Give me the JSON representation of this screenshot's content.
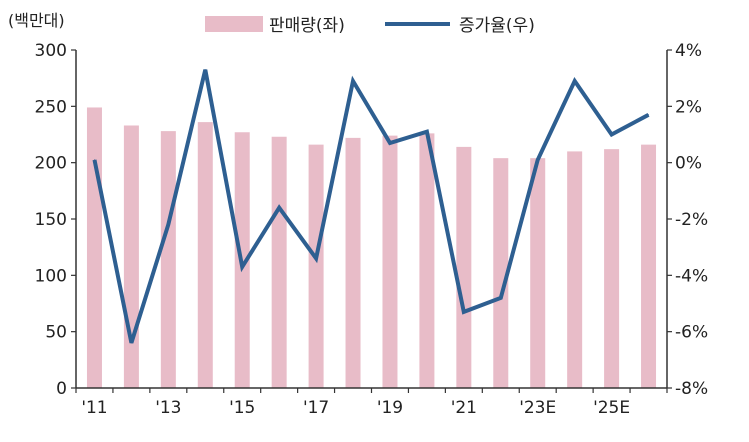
{
  "chart_data": {
    "type": "bar+line",
    "left_axis_unit": "(백만대)",
    "legend": {
      "bar_label": "판매량(좌)",
      "line_label": "증가율(우)"
    },
    "colors": {
      "bar": "#e8bcc8",
      "line": "#2e5f91",
      "axis": "#333333"
    },
    "x_tick_labels": [
      "'11",
      "'13",
      "'15",
      "'17",
      "'19",
      "'21",
      "'23E",
      "'25E"
    ],
    "x": [
      2011,
      2012,
      2013,
      2014,
      2015,
      2016,
      2017,
      2018,
      2019,
      2020,
      2021,
      2022,
      2023,
      2024,
      2025,
      2026
    ],
    "series": [
      {
        "name": "판매량(좌)",
        "axis": "left",
        "type": "bar",
        "values": [
          249,
          233,
          228,
          236,
          227,
          223,
          216,
          222,
          224,
          226,
          214,
          204,
          204,
          210,
          212,
          216
        ]
      },
      {
        "name": "증가율(우)",
        "axis": "right",
        "type": "line",
        "values": [
          0.1,
          -6.4,
          -2.2,
          3.3,
          -3.7,
          -1.6,
          -3.4,
          2.9,
          0.7,
          1.1,
          -5.3,
          -4.8,
          0.1,
          2.9,
          1.0,
          1.7
        ]
      }
    ],
    "left_axis": {
      "min": 0,
      "max": 300,
      "ticks": [
        0,
        50,
        100,
        150,
        200,
        250,
        300
      ]
    },
    "right_axis": {
      "min": -8,
      "max": 4,
      "ticks": [
        -8,
        -6,
        -4,
        -2,
        0,
        2,
        4
      ],
      "tick_labels": [
        "-8%",
        "-6%",
        "-4%",
        "-2%",
        "0%",
        "2%",
        "4%"
      ]
    },
    "grid": false,
    "legend_position": "top-center"
  }
}
